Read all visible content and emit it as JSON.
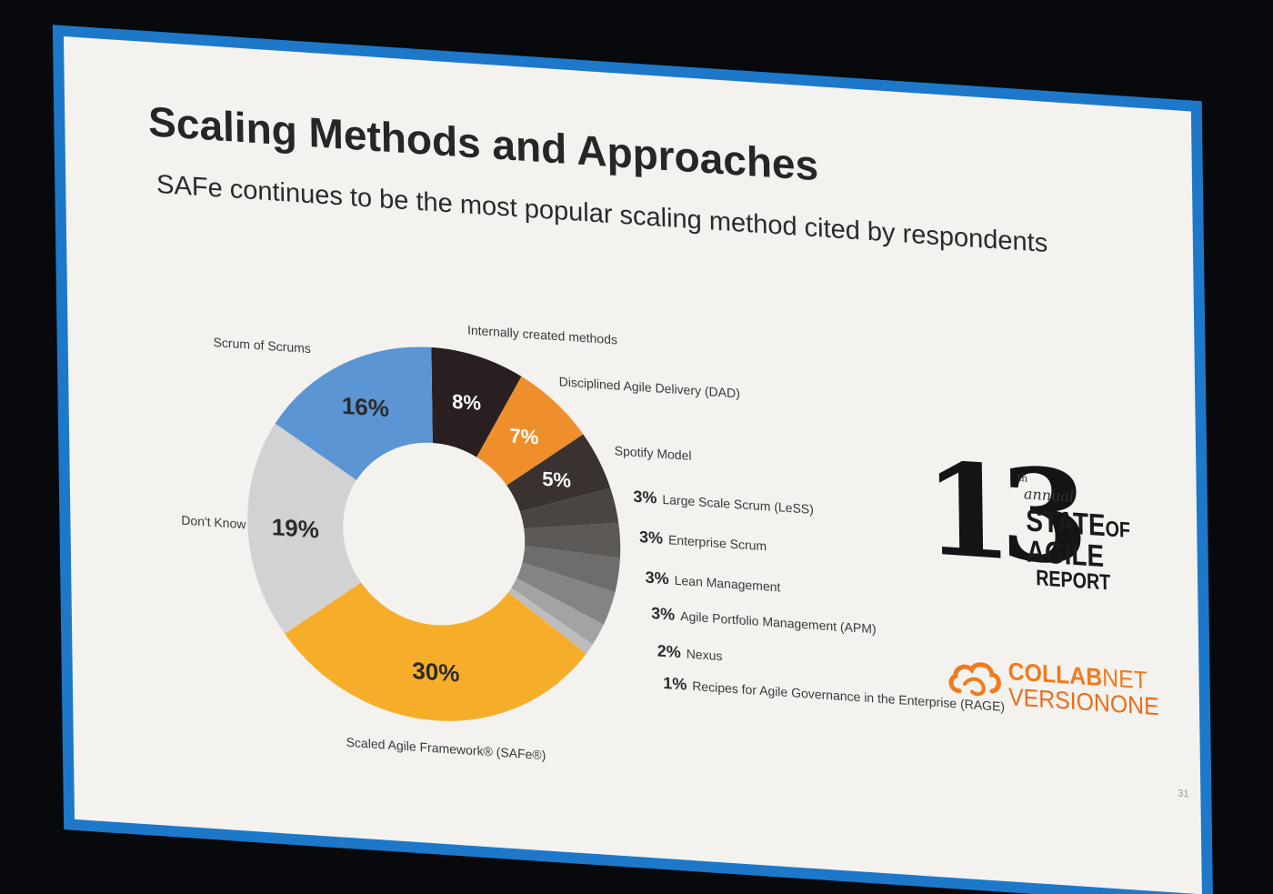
{
  "slide": {
    "title": "Scaling Methods and Approaches",
    "subtitle": "SAFe continues to be the most popular scaling method cited by respondents",
    "page_number": "31"
  },
  "logo": {
    "number": "13",
    "superscript": "th",
    "annual": "annual",
    "line1": "STATE",
    "line1_suffix": "OF",
    "line2": "AGILE",
    "line3": "REPORT"
  },
  "brand": {
    "line1_bold": "COLLAB",
    "line1_rest": "NET",
    "line2": "VERSIONONE",
    "color": "#f07b1d"
  },
  "frame_color": "#1d78c9",
  "chart_data": {
    "type": "pie",
    "donut": true,
    "unit": "%",
    "slices": [
      {
        "label": "Internally created methods",
        "value": 8,
        "color": "#2a1f20"
      },
      {
        "label": "Disciplined Agile Delivery (DAD)",
        "value": 7,
        "color": "#ef8f2b"
      },
      {
        "label": "Spotify Model",
        "value": 5,
        "color": "#3a3230"
      },
      {
        "label": "Large Scale Scrum (LeSS)",
        "value": 3,
        "color": "#4a4442"
      },
      {
        "label": "Enterprise Scrum",
        "value": 3,
        "color": "#5c5856"
      },
      {
        "label": "Lean Management",
        "value": 3,
        "color": "#6f6d6b"
      },
      {
        "label": "Agile Portfolio Management (APM)",
        "value": 3,
        "color": "#858483"
      },
      {
        "label": "Nexus",
        "value": 2,
        "color": "#a3a3a3"
      },
      {
        "label": "Recipes for Agile Governance in the Enterprise (RAGE)",
        "value": 1,
        "color": "#bdbdbd"
      },
      {
        "label": "Scaled Agile Framework® (SAFe®)",
        "value": 30,
        "color": "#f6ae2a"
      },
      {
        "label": "Don't Know",
        "value": 19,
        "color": "#d2d2d2"
      },
      {
        "label": "Scrum of Scrums",
        "value": 16,
        "color": "#5b95d4"
      }
    ]
  }
}
